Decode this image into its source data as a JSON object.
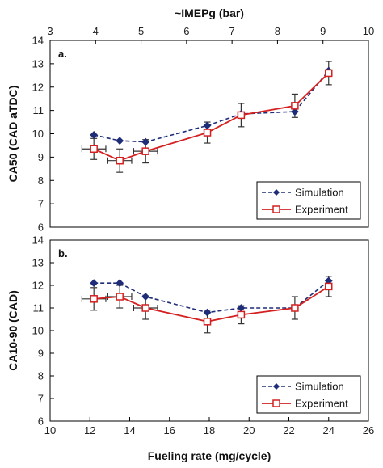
{
  "colors": {
    "simulation": "#1f2d78",
    "experiment": "#d42020",
    "axis": "#000000",
    "errorbar": "#333333"
  },
  "chart_data": [
    {
      "type": "line",
      "panel_label": "a.",
      "top_xlabel": "~IMEPg (bar)",
      "top_xlim": [
        3,
        10
      ],
      "top_xticks": [
        "3",
        "4",
        "5",
        "6",
        "7",
        "8",
        "9",
        "10"
      ],
      "xlabel": "",
      "xlim": [
        10,
        26
      ],
      "ylabel": "CA50 (CAD aTDC)",
      "ylim": [
        6,
        14
      ],
      "yticks": [
        "6",
        "7",
        "8",
        "9",
        "10",
        "11",
        "12",
        "13",
        "14"
      ],
      "legend_position": "bottom-right",
      "series": [
        {
          "name": "Simulation",
          "marker": "diamond",
          "line": "dashed",
          "x": [
            12.2,
            13.5,
            14.8,
            17.9,
            19.6,
            22.3,
            24.0
          ],
          "y": [
            9.95,
            9.7,
            9.65,
            10.35,
            10.85,
            10.95,
            12.7
          ]
        },
        {
          "name": "Experiment",
          "marker": "square-open",
          "line": "solid",
          "x": [
            12.2,
            13.5,
            14.8,
            17.9,
            19.6,
            22.3,
            24.0
          ],
          "y": [
            9.35,
            8.85,
            9.25,
            10.05,
            10.8,
            11.2,
            12.6
          ],
          "yerr": [
            0.45,
            0.5,
            0.5,
            0.45,
            0.5,
            0.5,
            0.5
          ],
          "xerr": [
            0.6,
            0.6,
            0.6,
            0,
            0,
            0,
            0
          ]
        }
      ]
    },
    {
      "type": "line",
      "panel_label": "b.",
      "xlabel": "Fueling rate (mg/cycle)",
      "xlim": [
        10,
        26
      ],
      "xticks": [
        "10",
        "12",
        "14",
        "16",
        "18",
        "20",
        "22",
        "24",
        "26"
      ],
      "ylabel": "CA10-90 (CAD)",
      "ylim": [
        6,
        14
      ],
      "yticks": [
        "6",
        "7",
        "8",
        "9",
        "10",
        "11",
        "12",
        "13",
        "14"
      ],
      "legend_position": "bottom-right",
      "series": [
        {
          "name": "Simulation",
          "marker": "diamond",
          "line": "dashed",
          "x": [
            12.2,
            13.5,
            14.8,
            17.9,
            19.6,
            22.3,
            24.0
          ],
          "y": [
            12.1,
            12.1,
            11.5,
            10.8,
            11.0,
            11.0,
            12.2
          ]
        },
        {
          "name": "Experiment",
          "marker": "square-open",
          "line": "solid",
          "x": [
            12.2,
            13.5,
            14.8,
            17.9,
            19.6,
            22.3,
            24.0
          ],
          "y": [
            11.4,
            11.5,
            11.0,
            10.4,
            10.7,
            11.0,
            11.95
          ],
          "yerr": [
            0.5,
            0.5,
            0.5,
            0.5,
            0.4,
            0.5,
            0.45
          ],
          "xerr": [
            0.6,
            0.6,
            0.6,
            0,
            0,
            0,
            0
          ]
        }
      ]
    }
  ]
}
